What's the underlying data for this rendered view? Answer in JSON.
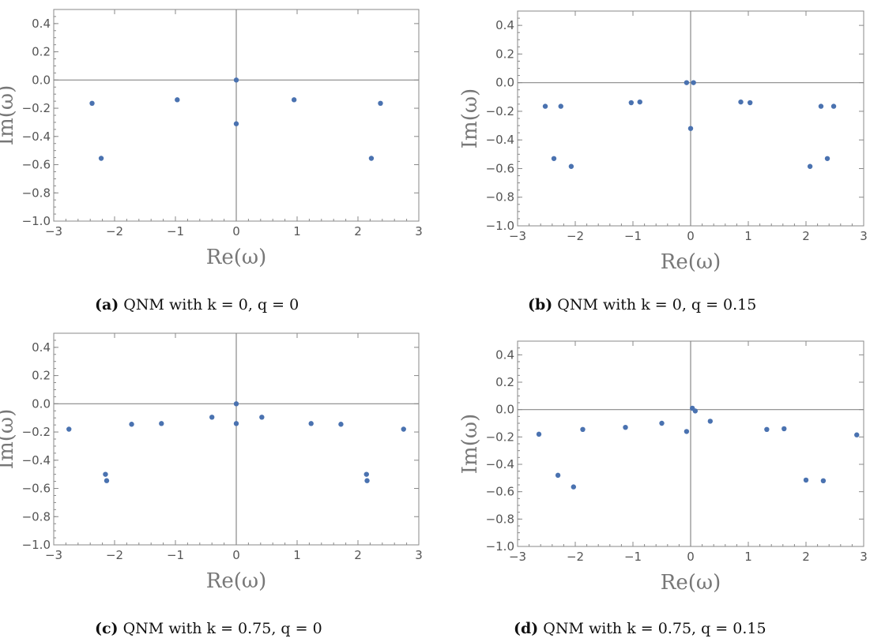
{
  "colors": {
    "point": "#4a72b0",
    "frame": "#888888",
    "axis": "#888888",
    "text": "#555555"
  },
  "chart_data": [
    {
      "type": "scatter",
      "panel_label": "(a)",
      "caption": "QNM with k = 0, q = 0",
      "xlabel": "Re(ω)",
      "ylabel": "Im(ω)",
      "xlim": [
        -3,
        3
      ],
      "ylim": [
        -1.0,
        0.5
      ],
      "xticks": [
        "−3",
        "−2",
        "−1",
        "0",
        "1",
        "2",
        "3"
      ],
      "yticks": [
        "−1.0",
        "−0.8",
        "−0.6",
        "−0.4",
        "−0.2",
        "0.0",
        "0.2",
        "0.4"
      ],
      "grid": false,
      "points": [
        {
          "x": -2.37,
          "y": -0.165
        },
        {
          "x": -2.22,
          "y": -0.555
        },
        {
          "x": -0.97,
          "y": -0.14
        },
        {
          "x": 0.0,
          "y": 0.0
        },
        {
          "x": 0.0,
          "y": -0.31
        },
        {
          "x": 0.95,
          "y": -0.14
        },
        {
          "x": 2.22,
          "y": -0.555
        },
        {
          "x": 2.37,
          "y": -0.165
        }
      ]
    },
    {
      "type": "scatter",
      "panel_label": "(b)",
      "caption": "QNM with k = 0, q = 0.15",
      "xlabel": "Re(ω)",
      "ylabel": "Im(ω)",
      "xlim": [
        -3,
        3
      ],
      "ylim": [
        -1.0,
        0.5
      ],
      "xticks": [
        "−3",
        "−2",
        "−1",
        "0",
        "1",
        "2",
        "3"
      ],
      "yticks": [
        "−1.0",
        "−0.8",
        "−0.6",
        "−0.4",
        "−0.2",
        "0.0",
        "0.2",
        "0.4"
      ],
      "grid": false,
      "points": [
        {
          "x": -2.52,
          "y": -0.165
        },
        {
          "x": -2.25,
          "y": -0.165
        },
        {
          "x": -2.37,
          "y": -0.53
        },
        {
          "x": -2.07,
          "y": -0.585
        },
        {
          "x": -1.03,
          "y": -0.14
        },
        {
          "x": -0.88,
          "y": -0.135
        },
        {
          "x": -0.07,
          "y": 0.0
        },
        {
          "x": 0.05,
          "y": 0.0
        },
        {
          "x": 0.0,
          "y": -0.32
        },
        {
          "x": 0.87,
          "y": -0.135
        },
        {
          "x": 1.03,
          "y": -0.14
        },
        {
          "x": 2.07,
          "y": -0.585
        },
        {
          "x": 2.37,
          "y": -0.53
        },
        {
          "x": 2.26,
          "y": -0.165
        },
        {
          "x": 2.48,
          "y": -0.165
        }
      ]
    },
    {
      "type": "scatter",
      "panel_label": "(c)",
      "caption": "QNM with k = 0.75, q = 0",
      "xlabel": "Re(ω)",
      "ylabel": "Im(ω)",
      "xlim": [
        -3,
        3
      ],
      "ylim": [
        -1.0,
        0.5
      ],
      "xticks": [
        "−3",
        "−2",
        "−1",
        "0",
        "1",
        "2",
        "3"
      ],
      "yticks": [
        "−1.0",
        "−0.8",
        "−0.6",
        "−0.4",
        "−0.2",
        "0.0",
        "0.2",
        "0.4"
      ],
      "grid": false,
      "points": [
        {
          "x": -2.75,
          "y": -0.18
        },
        {
          "x": -2.15,
          "y": -0.5
        },
        {
          "x": -2.13,
          "y": -0.545
        },
        {
          "x": -1.72,
          "y": -0.145
        },
        {
          "x": -1.23,
          "y": -0.14
        },
        {
          "x": -0.4,
          "y": -0.095
        },
        {
          "x": 0.0,
          "y": 0.0
        },
        {
          "x": 0.0,
          "y": -0.14
        },
        {
          "x": 0.42,
          "y": -0.095
        },
        {
          "x": 1.23,
          "y": -0.14
        },
        {
          "x": 1.72,
          "y": -0.145
        },
        {
          "x": 2.14,
          "y": -0.5
        },
        {
          "x": 2.15,
          "y": -0.545
        },
        {
          "x": 2.75,
          "y": -0.18
        }
      ]
    },
    {
      "type": "scatter",
      "panel_label": "(d)",
      "caption": "QNM with k = 0.75, q = 0.15",
      "xlabel": "Re(ω)",
      "ylabel": "Im(ω)",
      "xlim": [
        -3,
        3
      ],
      "ylim": [
        -1.0,
        0.5
      ],
      "xticks": [
        "−3",
        "−2",
        "−1",
        "0",
        "1",
        "2",
        "3"
      ],
      "yticks": [
        "−1.0",
        "−0.8",
        "−0.6",
        "−0.4",
        "−0.2",
        "0.0",
        "0.2",
        "0.4"
      ],
      "grid": false,
      "points": [
        {
          "x": -2.63,
          "y": -0.18
        },
        {
          "x": -2.3,
          "y": -0.48
        },
        {
          "x": -2.03,
          "y": -0.565
        },
        {
          "x": -1.87,
          "y": -0.145
        },
        {
          "x": -1.13,
          "y": -0.13
        },
        {
          "x": -0.5,
          "y": -0.1
        },
        {
          "x": -0.07,
          "y": -0.16
        },
        {
          "x": 0.03,
          "y": 0.01
        },
        {
          "x": 0.08,
          "y": -0.01
        },
        {
          "x": 0.34,
          "y": -0.085
        },
        {
          "x": 1.32,
          "y": -0.145
        },
        {
          "x": 1.62,
          "y": -0.14
        },
        {
          "x": 2.0,
          "y": -0.515
        },
        {
          "x": 2.3,
          "y": -0.52
        },
        {
          "x": 2.88,
          "y": -0.185
        }
      ]
    }
  ]
}
